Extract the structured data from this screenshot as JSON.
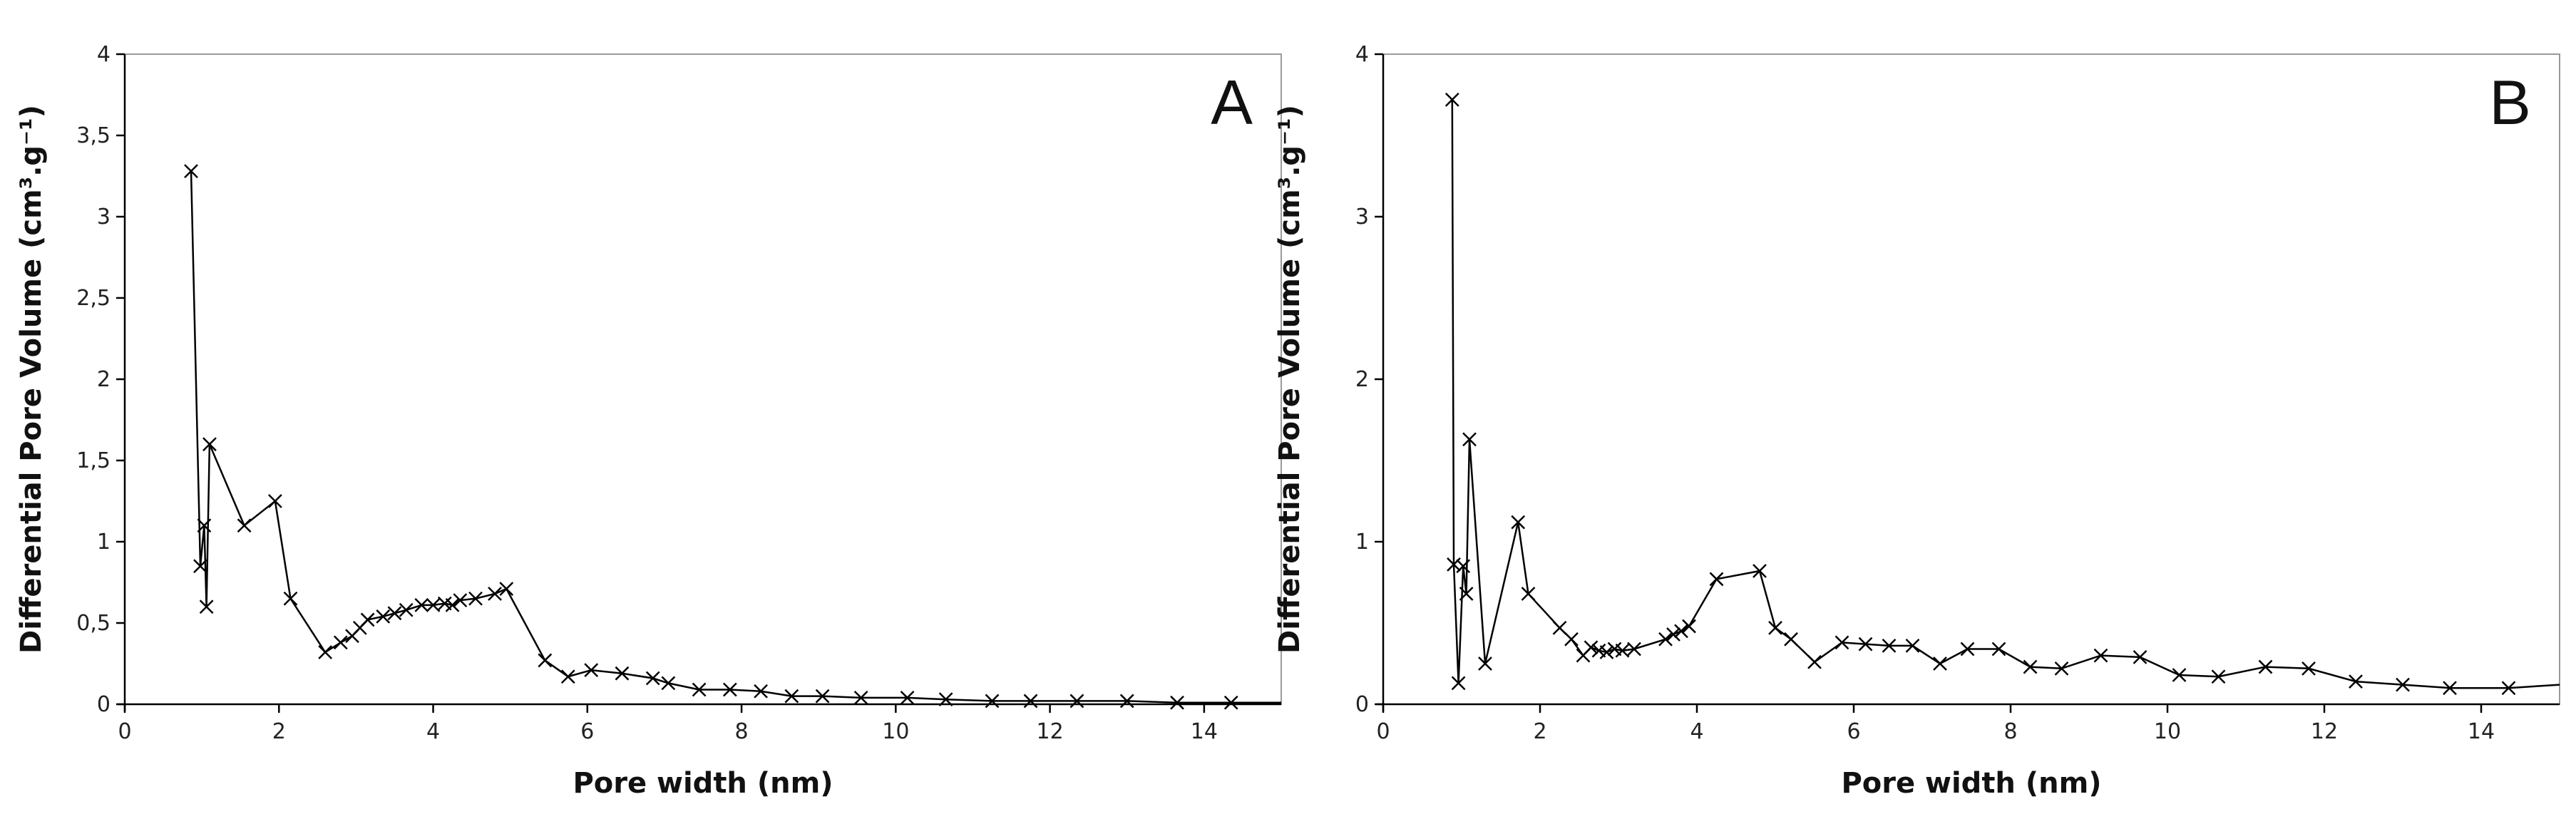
{
  "chart_data": [
    {
      "type": "line",
      "panel_label": "A",
      "xlabel": "Pore width (nm)",
      "ylabel": "Differential Pore Volume (cm³.g⁻¹)",
      "xlim": [
        0,
        15
      ],
      "ylim": [
        0,
        4
      ],
      "x_ticks": [
        0,
        2,
        4,
        6,
        8,
        10,
        12,
        14
      ],
      "y_ticks": [
        0,
        0.5,
        1,
        1.5,
        2,
        2.5,
        3,
        3.5,
        4
      ],
      "x_tick_labels": [
        "0",
        "2",
        "4",
        "6",
        "8",
        "10",
        "12",
        "14"
      ],
      "y_tick_labels": [
        "0",
        "0,5",
        "1",
        "1,5",
        "2",
        "2,5",
        "3",
        "3,5",
        "4"
      ],
      "grid": false,
      "series": [
        {
          "marker": "x",
          "color": "#000000",
          "x": [
            0.86,
            0.98,
            1.03,
            1.06,
            1.1,
            1.55,
            1.95,
            2.15,
            2.6,
            2.8,
            2.95,
            3.05,
            3.15,
            3.35,
            3.5,
            3.65,
            3.85,
            4.0,
            4.15,
            4.25,
            4.35,
            4.55,
            4.8,
            4.95,
            5.45,
            5.75,
            6.05,
            6.45,
            6.85,
            7.05,
            7.45,
            7.85,
            8.25,
            8.65,
            9.05,
            9.55,
            10.15,
            10.65,
            11.25,
            11.75,
            12.35,
            13.0,
            13.65,
            14.35,
            15.0
          ],
          "y": [
            3.28,
            0.85,
            1.1,
            0.6,
            1.6,
            1.1,
            1.25,
            0.65,
            0.32,
            0.38,
            0.42,
            0.47,
            0.52,
            0.54,
            0.56,
            0.58,
            0.61,
            0.61,
            0.62,
            0.61,
            0.64,
            0.65,
            0.68,
            0.71,
            0.27,
            0.17,
            0.21,
            0.19,
            0.16,
            0.13,
            0.09,
            0.09,
            0.08,
            0.05,
            0.05,
            0.04,
            0.04,
            0.03,
            0.02,
            0.02,
            0.02,
            0.02,
            0.01,
            0.01,
            0.01
          ]
        }
      ]
    },
    {
      "type": "line",
      "panel_label": "B",
      "xlabel": "Pore width (nm)",
      "ylabel": "Differential Pore Volume (cm³.g⁻¹)",
      "xlim": [
        0,
        15
      ],
      "ylim": [
        0,
        4
      ],
      "x_ticks": [
        0,
        2,
        4,
        6,
        8,
        10,
        12,
        14
      ],
      "y_ticks": [
        0,
        1,
        2,
        3,
        4
      ],
      "x_tick_labels": [
        "0",
        "2",
        "4",
        "6",
        "8",
        "10",
        "12",
        "14"
      ],
      "y_tick_labels": [
        "0",
        "1",
        "2",
        "3",
        "4"
      ],
      "grid": false,
      "series": [
        {
          "marker": "x",
          "color": "#000000",
          "x": [
            0.88,
            0.9,
            0.96,
            1.02,
            1.06,
            1.1,
            1.3,
            1.72,
            1.85,
            2.25,
            2.4,
            2.55,
            2.65,
            2.75,
            2.85,
            2.95,
            3.05,
            3.2,
            3.6,
            3.7,
            3.8,
            3.9,
            4.25,
            4.8,
            5.0,
            5.2,
            5.5,
            5.85,
            6.15,
            6.45,
            6.75,
            7.1,
            7.45,
            7.85,
            8.25,
            8.65,
            9.15,
            9.65,
            10.15,
            10.65,
            11.25,
            11.8,
            12.4,
            13.0,
            13.6,
            14.35,
            15.0
          ],
          "y": [
            3.72,
            0.86,
            0.13,
            0.85,
            0.68,
            1.63,
            0.25,
            1.12,
            0.68,
            0.47,
            0.4,
            0.3,
            0.35,
            0.33,
            0.32,
            0.34,
            0.33,
            0.34,
            0.4,
            0.43,
            0.45,
            0.48,
            0.77,
            0.82,
            0.47,
            0.4,
            0.26,
            0.38,
            0.37,
            0.36,
            0.36,
            0.25,
            0.34,
            0.34,
            0.23,
            0.22,
            0.3,
            0.29,
            0.18,
            0.17,
            0.23,
            0.22,
            0.14,
            0.12,
            0.1,
            0.1,
            0.12
          ]
        }
      ]
    }
  ]
}
